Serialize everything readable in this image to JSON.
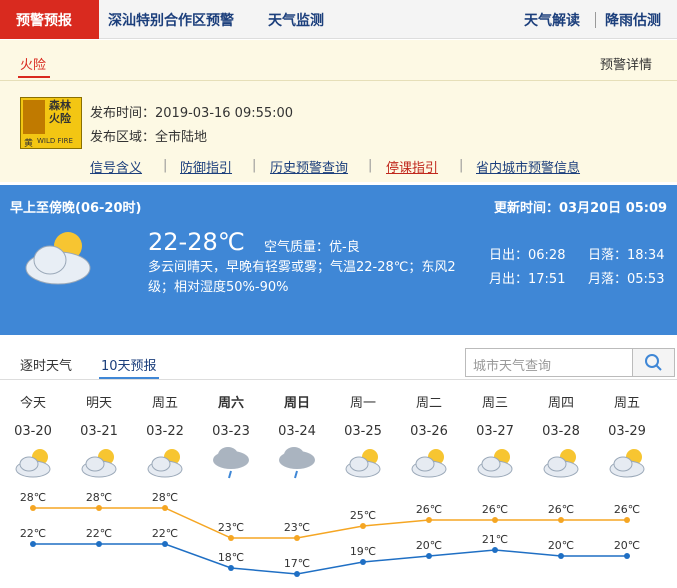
{
  "header": {
    "tabs": [
      "预警预报",
      "深汕特别合作区预警",
      "天气监测"
    ],
    "right_tabs": [
      "天气解读",
      "降雨估测"
    ]
  },
  "alert": {
    "tab": "火险",
    "detail_link": "预警详情",
    "icon": {
      "line1": "森林",
      "line2": "火险",
      "level": "黄",
      "english": "WILD FIRE"
    },
    "fields": [
      "发布时间：2019-03-16 09:55:00",
      "发布区域：全市陆地"
    ],
    "links": [
      "信号含义",
      "防御指引",
      "历史预警查询",
      "停课指引",
      "省内城市预警信息"
    ]
  },
  "current": {
    "period": "早上至傍晚(06-20时)",
    "update": "更新时间：03月20日 05:09",
    "temp": "22-28℃",
    "air": "空气质量：优-良",
    "description": "多云间晴天，早晚有轻雾或雾；气温22-28℃；东风2级；相对湿度50%-90%",
    "sunrise": "日出：06:28",
    "sunset": "日落：18:34",
    "moonrise": "月出：17:51",
    "moonset": "月落：05:53"
  },
  "forecast_tabs": [
    "逐时天气",
    "10天预报"
  ],
  "search_placeholder": "城市天气查询",
  "forecast": {
    "days": [
      {
        "weekday": "今天",
        "date": "03-20",
        "icon": "partly-cloudy",
        "bold": false
      },
      {
        "weekday": "明天",
        "date": "03-21",
        "icon": "partly-cloudy",
        "bold": false
      },
      {
        "weekday": "周五",
        "date": "03-22",
        "icon": "partly-cloudy",
        "bold": false
      },
      {
        "weekday": "周六",
        "date": "03-23",
        "icon": "rain",
        "bold": true
      },
      {
        "weekday": "周日",
        "date": "03-24",
        "icon": "rain",
        "bold": true
      },
      {
        "weekday": "周一",
        "date": "03-25",
        "icon": "partly-cloudy",
        "bold": false
      },
      {
        "weekday": "周二",
        "date": "03-26",
        "icon": "partly-cloudy",
        "bold": false
      },
      {
        "weekday": "周三",
        "date": "03-27",
        "icon": "partly-cloudy",
        "bold": false
      },
      {
        "weekday": "周四",
        "date": "03-28",
        "icon": "partly-cloudy",
        "bold": false
      },
      {
        "weekday": "周五",
        "date": "03-29",
        "icon": "partly-cloudy",
        "bold": false
      }
    ],
    "highs": [
      28,
      28,
      28,
      23,
      23,
      25,
      26,
      26,
      26,
      26
    ],
    "high_labels": [
      "28℃",
      "28℃",
      "28℃",
      "23℃",
      "23℃",
      "25℃",
      "26℃",
      "26℃",
      "26℃",
      "26℃"
    ],
    "lows": [
      22,
      22,
      22,
      18,
      17,
      19,
      20,
      21,
      20,
      20
    ],
    "low_labels": [
      "22℃",
      "22℃",
      "22℃",
      "18℃",
      "17℃",
      "19℃",
      "20℃",
      "21℃",
      "20℃",
      "20℃"
    ],
    "high_color": "#f5a623",
    "low_color": "#1f6fc4"
  }
}
